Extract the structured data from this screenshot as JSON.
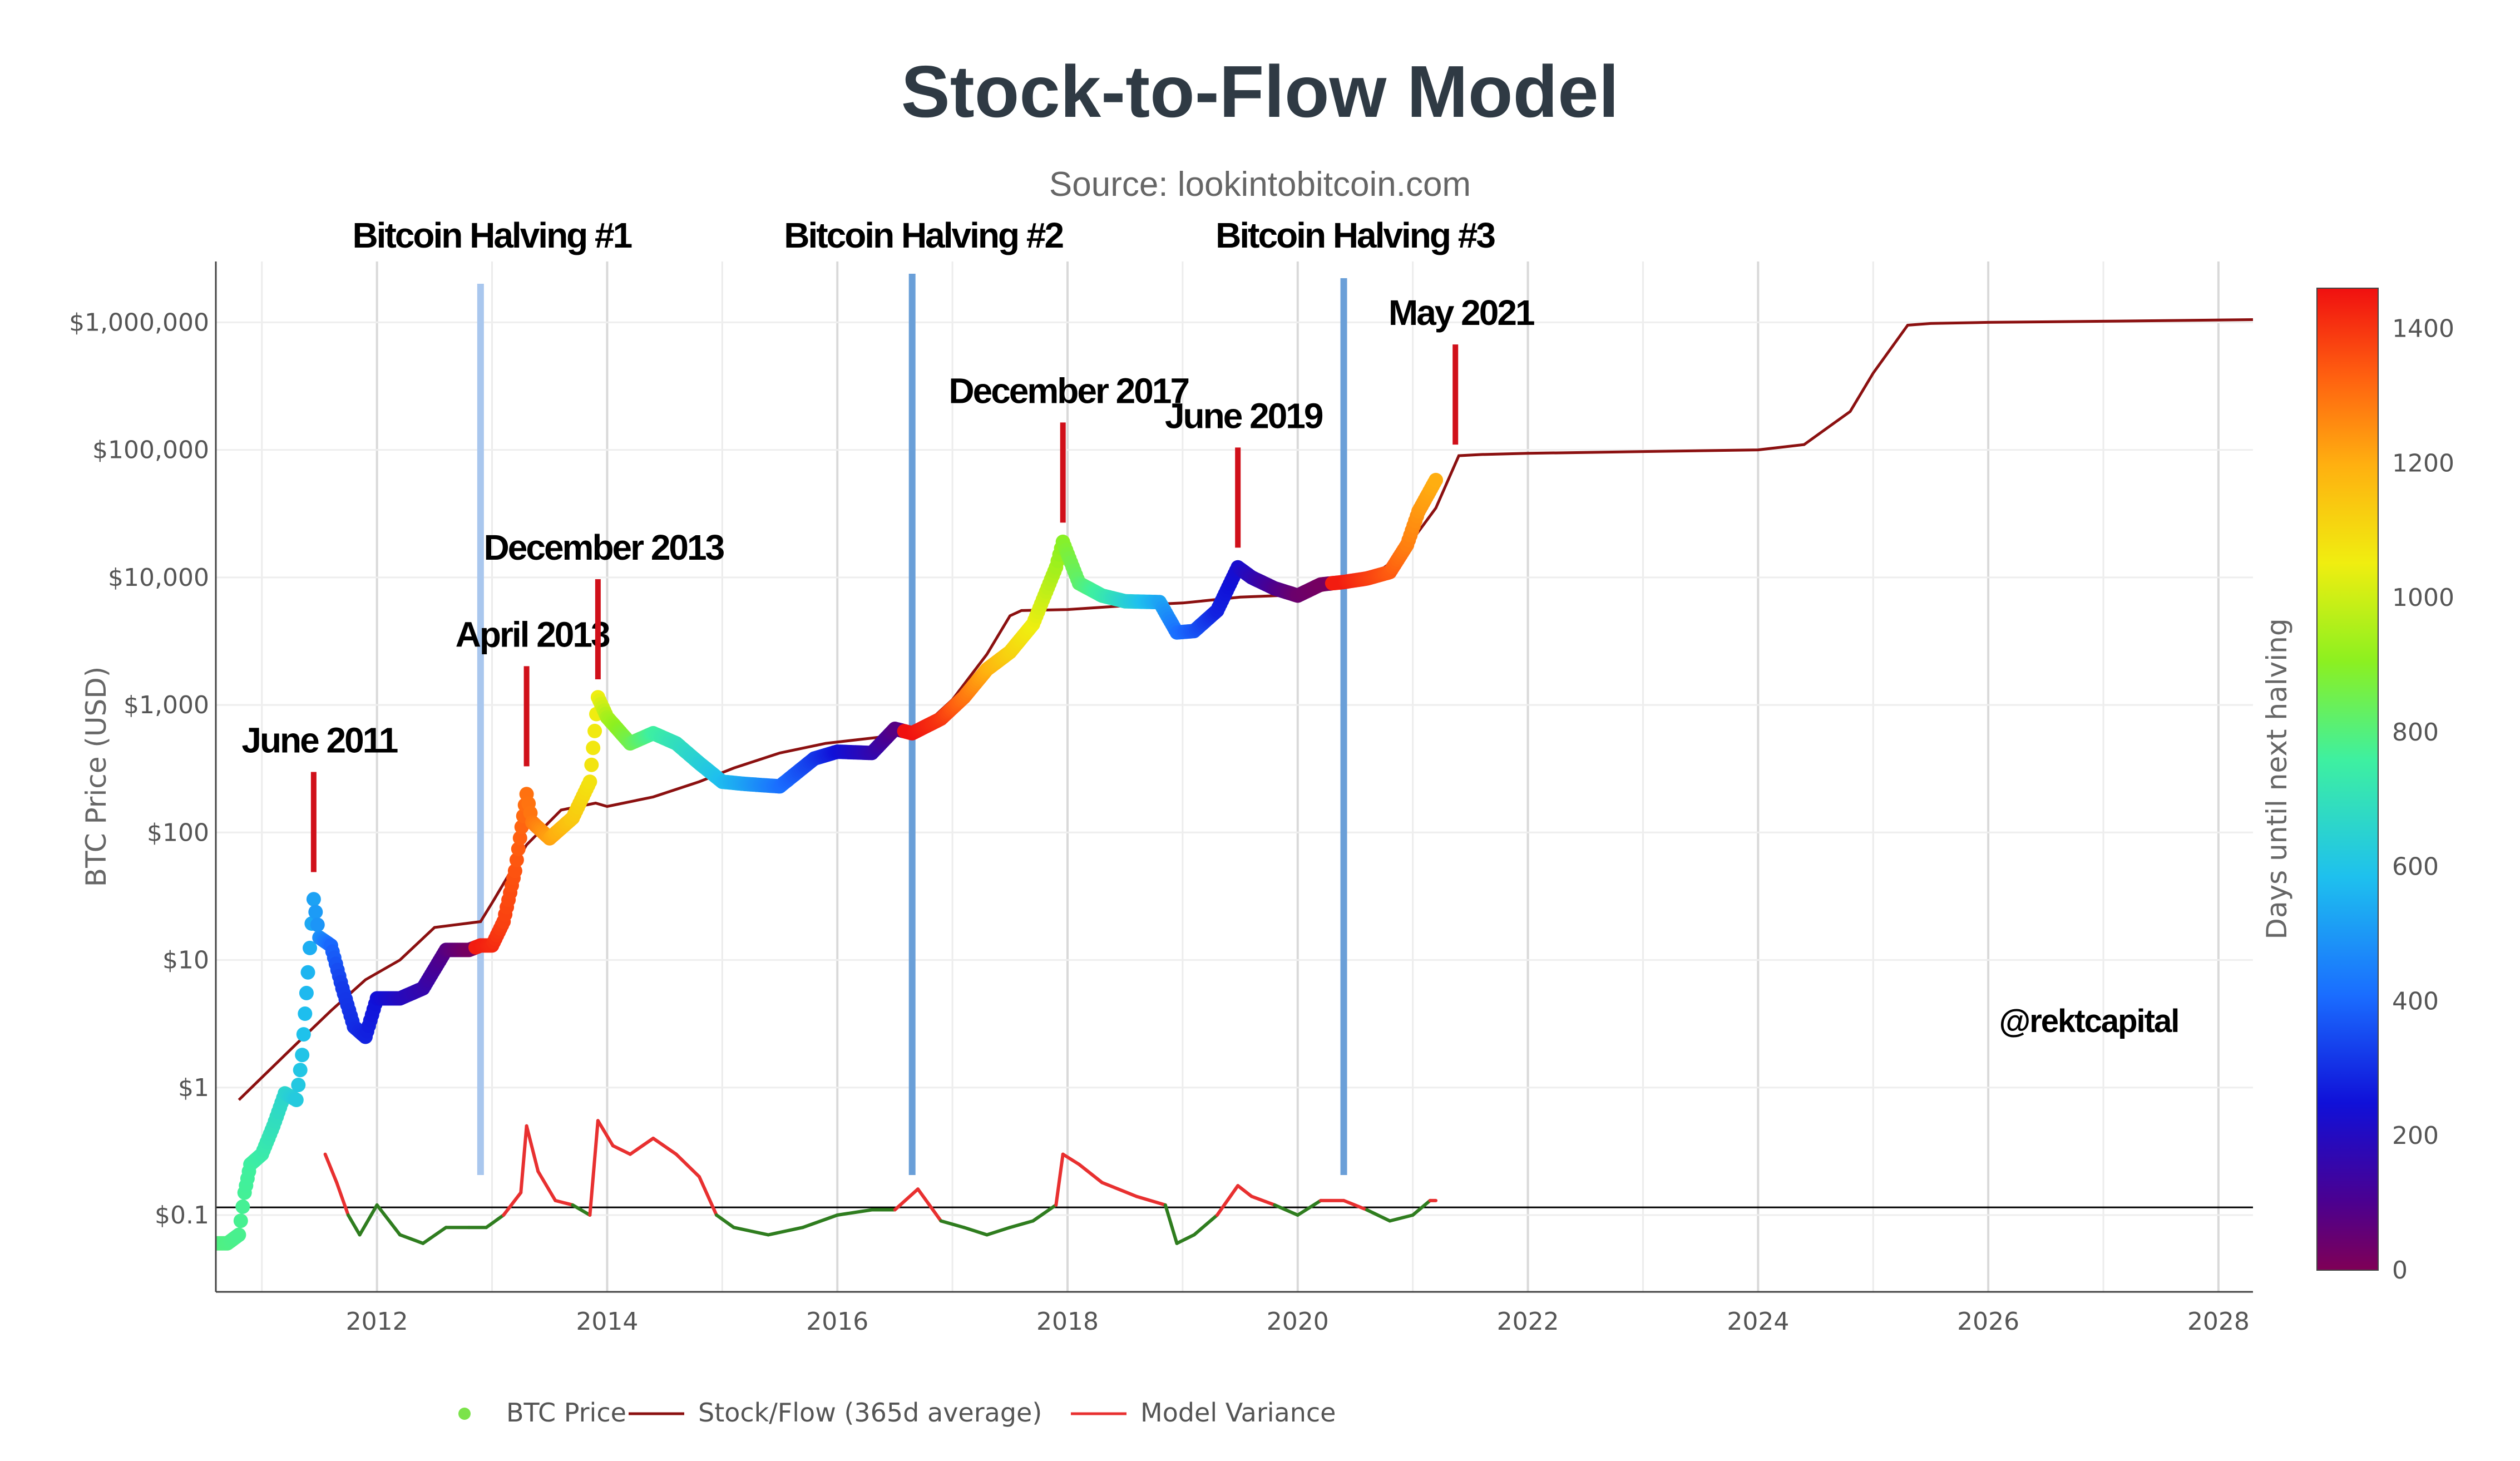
{
  "chart_data": {
    "type": "scatter",
    "title": "Stock-to-Flow Model",
    "subtitle": "Source: lookintobitcoin.com",
    "ylabel": "BTC Price (USD)",
    "xlabel": "",
    "y_scale": "log",
    "ylim": [
      0.025,
      3000000
    ],
    "xlim": [
      2010.6,
      2028.3
    ],
    "x_ticks": [
      2012,
      2014,
      2016,
      2018,
      2020,
      2022,
      2024,
      2026,
      2028
    ],
    "x_tick_labels": [
      "2012",
      "2014",
      "2016",
      "2018",
      "2020",
      "2022",
      "2024",
      "2026",
      "2028"
    ],
    "y_ticks": [
      0.1,
      1,
      10,
      100,
      1000,
      10000,
      100000,
      1000000
    ],
    "y_tick_labels": [
      "$0.1",
      "$1",
      "$10",
      "$100",
      "$1,000",
      "$10,000",
      "$100,000",
      "$1,000,000"
    ],
    "grid": true,
    "legend_position": "bottom",
    "legend": [
      {
        "name": "BTC Price",
        "symbol": "dot",
        "color": "#7be34a"
      },
      {
        "name": "Stock/Flow (365d average)",
        "symbol": "line",
        "color": "#8b1010"
      },
      {
        "name": "Model Variance",
        "symbol": "line",
        "color": "#e83030"
      }
    ],
    "colorbar": {
      "title": "Days until next halving",
      "min": 0,
      "max": 1460,
      "ticks": [
        0,
        200,
        400,
        600,
        800,
        1000,
        1200,
        1400
      ],
      "tick_labels": [
        "0",
        "200",
        "400",
        "600",
        "800",
        "1000",
        "1200",
        "1400"
      ]
    },
    "reference_line_y": 0.115,
    "halvings": [
      {
        "label": "Bitcoin Halving #1",
        "x": 2012.9
      },
      {
        "label": "Bitcoin Halving #2",
        "x": 2016.65
      },
      {
        "label": "Bitcoin Halving #3",
        "x": 2020.4
      }
    ],
    "annotations": [
      {
        "label": "June 2011",
        "x": 2011.45,
        "y": 40
      },
      {
        "label": "April 2013",
        "x": 2013.3,
        "y": 270
      },
      {
        "label": "December 2013",
        "x": 2013.92,
        "y": 1300
      },
      {
        "label": "December 2017",
        "x": 2017.96,
        "y": 22000
      },
      {
        "label": "June 2019",
        "x": 2019.48,
        "y": 14000
      },
      {
        "label": "May 2021",
        "x": 2021.37,
        "y": 90000
      }
    ],
    "watermark": "@rektcapital",
    "series": [
      {
        "name": "BTC Price",
        "x": [
          2010.6,
          2010.7,
          2010.8,
          2010.85,
          2010.9,
          2011.0,
          2011.1,
          2011.2,
          2011.3,
          2011.35,
          2011.4,
          2011.45,
          2011.5,
          2011.6,
          2011.7,
          2011.8,
          2011.9,
          2012.0,
          2012.2,
          2012.4,
          2012.6,
          2012.8,
          2012.9,
          2013.0,
          2013.1,
          2013.2,
          2013.3,
          2013.35,
          2013.5,
          2013.7,
          2013.85,
          2013.92,
          2014.0,
          2014.2,
          2014.4,
          2014.6,
          2014.8,
          2015.0,
          2015.2,
          2015.5,
          2015.8,
          2016.0,
          2016.3,
          2016.5,
          2016.65,
          2016.9,
          2017.1,
          2017.3,
          2017.5,
          2017.7,
          2017.9,
          2017.96,
          2018.1,
          2018.3,
          2018.5,
          2018.8,
          2018.95,
          2019.1,
          2019.3,
          2019.48,
          2019.6,
          2019.8,
          2020.0,
          2020.2,
          2020.4,
          2020.6,
          2020.8,
          2020.95,
          2021.05,
          2021.2
        ],
        "values": [
          0.06,
          0.06,
          0.07,
          0.15,
          0.25,
          0.3,
          0.5,
          0.9,
          0.8,
          1.8,
          8,
          30,
          15,
          13,
          6,
          3,
          2.5,
          5,
          5,
          6,
          12,
          12,
          13,
          13,
          20,
          50,
          200,
          120,
          90,
          130,
          250,
          1150,
          800,
          500,
          600,
          500,
          350,
          250,
          240,
          230,
          380,
          430,
          420,
          650,
          600,
          780,
          1150,
          1900,
          2600,
          4300,
          12000,
          19000,
          9000,
          7200,
          6500,
          6400,
          3700,
          3800,
          5500,
          12000,
          10000,
          8200,
          7200,
          8800,
          9200,
          9800,
          11000,
          18000,
          33000,
          58000
        ],
        "colors": [
          800,
          790,
          780,
          770,
          760,
          740,
          700,
          660,
          620,
          600,
          560,
          520,
          480,
          400,
          320,
          300,
          280,
          250,
          200,
          160,
          80,
          20,
          1440,
          1420,
          1380,
          1350,
          1300,
          1290,
          1220,
          1140,
          1080,
          1050,
          950,
          850,
          760,
          700,
          640,
          580,
          520,
          420,
          320,
          250,
          170,
          80,
          1460,
          1400,
          1300,
          1200,
          1120,
          1050,
          940,
          900,
          820,
          740,
          650,
          530,
          420,
          370,
          280,
          230,
          180,
          100,
          40,
          20,
          1440,
          1390,
          1340,
          1280,
          1240,
          1200
        ]
      },
      {
        "name": "Stock/Flow (365d average)",
        "x": [
          2010.8,
          2011.0,
          2011.3,
          2011.6,
          2011.9,
          2012.2,
          2012.5,
          2012.9,
          2013.0,
          2013.3,
          2013.6,
          2013.9,
          2014.0,
          2014.4,
          2014.8,
          2015.1,
          2015.5,
          2015.9,
          2016.3,
          2016.65,
          2016.8,
          2017.0,
          2017.3,
          2017.5,
          2017.6,
          2018.0,
          2018.5,
          2019.0,
          2019.5,
          2020.0,
          2020.4,
          2020.6,
          2020.9,
          2021.2,
          2021.4,
          2021.6,
          2022.0,
          2023.0,
          2024.0,
          2024.4,
          2024.8,
          2025.0,
          2025.3,
          2025.5,
          2026.0,
          2027.0,
          2028.3
        ],
        "values": [
          0.8,
          1.2,
          2.2,
          4,
          7,
          10,
          18,
          20,
          28,
          80,
          150,
          170,
          160,
          190,
          250,
          320,
          420,
          500,
          550,
          600,
          750,
          1100,
          2500,
          5000,
          5500,
          5600,
          6000,
          6300,
          7000,
          7300,
          8500,
          9500,
          15000,
          35000,
          90000,
          92000,
          94000,
          97000,
          100000,
          110000,
          200000,
          400000,
          950000,
          980000,
          1000000,
          1020000,
          1050000
        ]
      },
      {
        "name": "Model Variance",
        "x": [
          2011.55,
          2011.65,
          2011.75,
          2011.85,
          2012.0,
          2012.2,
          2012.4,
          2012.6,
          2012.8,
          2012.95,
          2013.1,
          2013.25,
          2013.3,
          2013.4,
          2013.55,
          2013.7,
          2013.85,
          2013.92,
          2014.05,
          2014.2,
          2014.4,
          2014.6,
          2014.8,
          2014.95,
          2015.1,
          2015.4,
          2015.7,
          2016.0,
          2016.3,
          2016.5,
          2016.7,
          2016.9,
          2017.1,
          2017.3,
          2017.5,
          2017.7,
          2017.9,
          2017.96,
          2018.1,
          2018.3,
          2018.6,
          2018.85,
          2018.95,
          2019.1,
          2019.3,
          2019.48,
          2019.6,
          2019.8,
          2020.0,
          2020.2,
          2020.4,
          2020.6,
          2020.8,
          2021.0,
          2021.15,
          2021.2
        ],
        "values": [
          0.3,
          0.18,
          0.1,
          0.07,
          0.12,
          0.07,
          0.06,
          0.08,
          0.08,
          0.08,
          0.1,
          0.15,
          0.5,
          0.22,
          0.13,
          0.12,
          0.1,
          0.55,
          0.35,
          0.3,
          0.4,
          0.3,
          0.2,
          0.1,
          0.08,
          0.07,
          0.08,
          0.1,
          0.11,
          0.11,
          0.16,
          0.09,
          0.08,
          0.07,
          0.08,
          0.09,
          0.12,
          0.3,
          0.25,
          0.18,
          0.14,
          0.12,
          0.06,
          0.07,
          0.1,
          0.17,
          0.14,
          0.12,
          0.1,
          0.13,
          0.13,
          0.11,
          0.09,
          0.1,
          0.13,
          0.13
        ]
      }
    ]
  }
}
